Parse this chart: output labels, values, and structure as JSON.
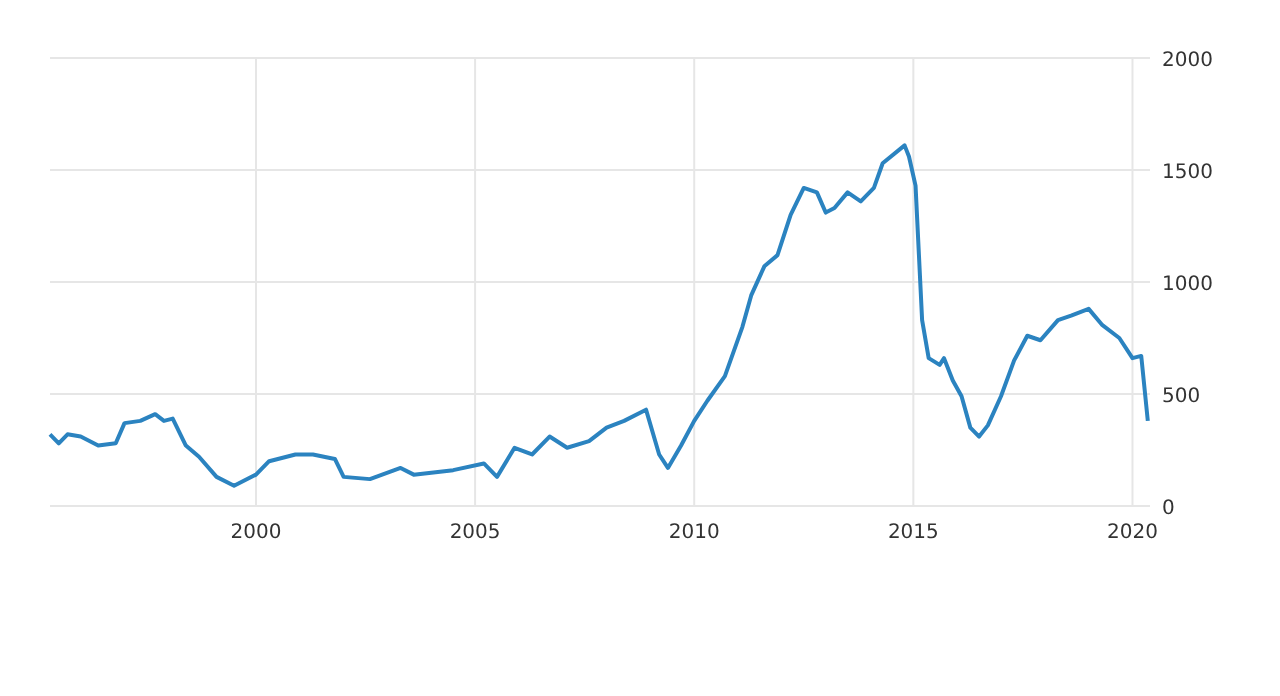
{
  "chart_data": {
    "type": "line",
    "xlim": [
      1995.3,
      2020.4
    ],
    "xticks": [
      2000,
      2005,
      2010,
      2015,
      2020
    ],
    "ylim": [
      0,
      2000
    ],
    "yticks": [
      0,
      500,
      1000,
      1500,
      2000
    ],
    "grid": true,
    "series": [
      {
        "color": "#2b83c0",
        "x": [
          1995.3,
          1995.5,
          1995.7,
          1996.0,
          1996.4,
          1996.8,
          1997.0,
          1997.36,
          1997.7,
          1997.9,
          1998.1,
          1998.4,
          1998.7,
          1999.1,
          1999.5,
          2000.0,
          2000.3,
          2000.9,
          2001.3,
          2001.8,
          2002.0,
          2002.6,
          2003.3,
          2003.6,
          2004.5,
          2005.2,
          2005.5,
          2005.9,
          2006.3,
          2006.7,
          2007.1,
          2007.6,
          2008.0,
          2008.4,
          2008.9,
          2009.2,
          2009.4,
          2009.7,
          2010.0,
          2010.3,
          2010.7,
          2011.1,
          2011.3,
          2011.6,
          2011.9,
          2012.2,
          2012.5,
          2012.8,
          2013.0,
          2013.2,
          2013.5,
          2013.8,
          2014.1,
          2014.3,
          2014.8,
          2014.9,
          2015.05,
          2015.2,
          2015.35,
          2015.6,
          2015.7,
          2015.9,
          2016.1,
          2016.3,
          2016.5,
          2016.7,
          2017.0,
          2017.3,
          2017.6,
          2017.9,
          2018.3,
          2018.6,
          2019.0,
          2019.3,
          2019.7,
          2020.0,
          2020.2,
          2020.35
        ],
        "values": [
          320,
          280,
          320,
          310,
          270,
          280,
          370,
          380,
          410,
          380,
          390,
          270,
          220,
          130,
          90,
          140,
          200,
          230,
          230,
          210,
          130,
          120,
          170,
          140,
          160,
          190,
          130,
          260,
          230,
          310,
          260,
          290,
          350,
          380,
          430,
          230,
          170,
          270,
          380,
          470,
          580,
          800,
          940,
          1070,
          1120,
          1300,
          1420,
          1400,
          1310,
          1330,
          1400,
          1360,
          1420,
          1530,
          1610,
          1560,
          1430,
          830,
          660,
          630,
          660,
          560,
          490,
          350,
          310,
          360,
          490,
          650,
          760,
          740,
          830,
          850,
          880,
          810,
          750,
          660,
          670,
          380
        ]
      }
    ]
  }
}
